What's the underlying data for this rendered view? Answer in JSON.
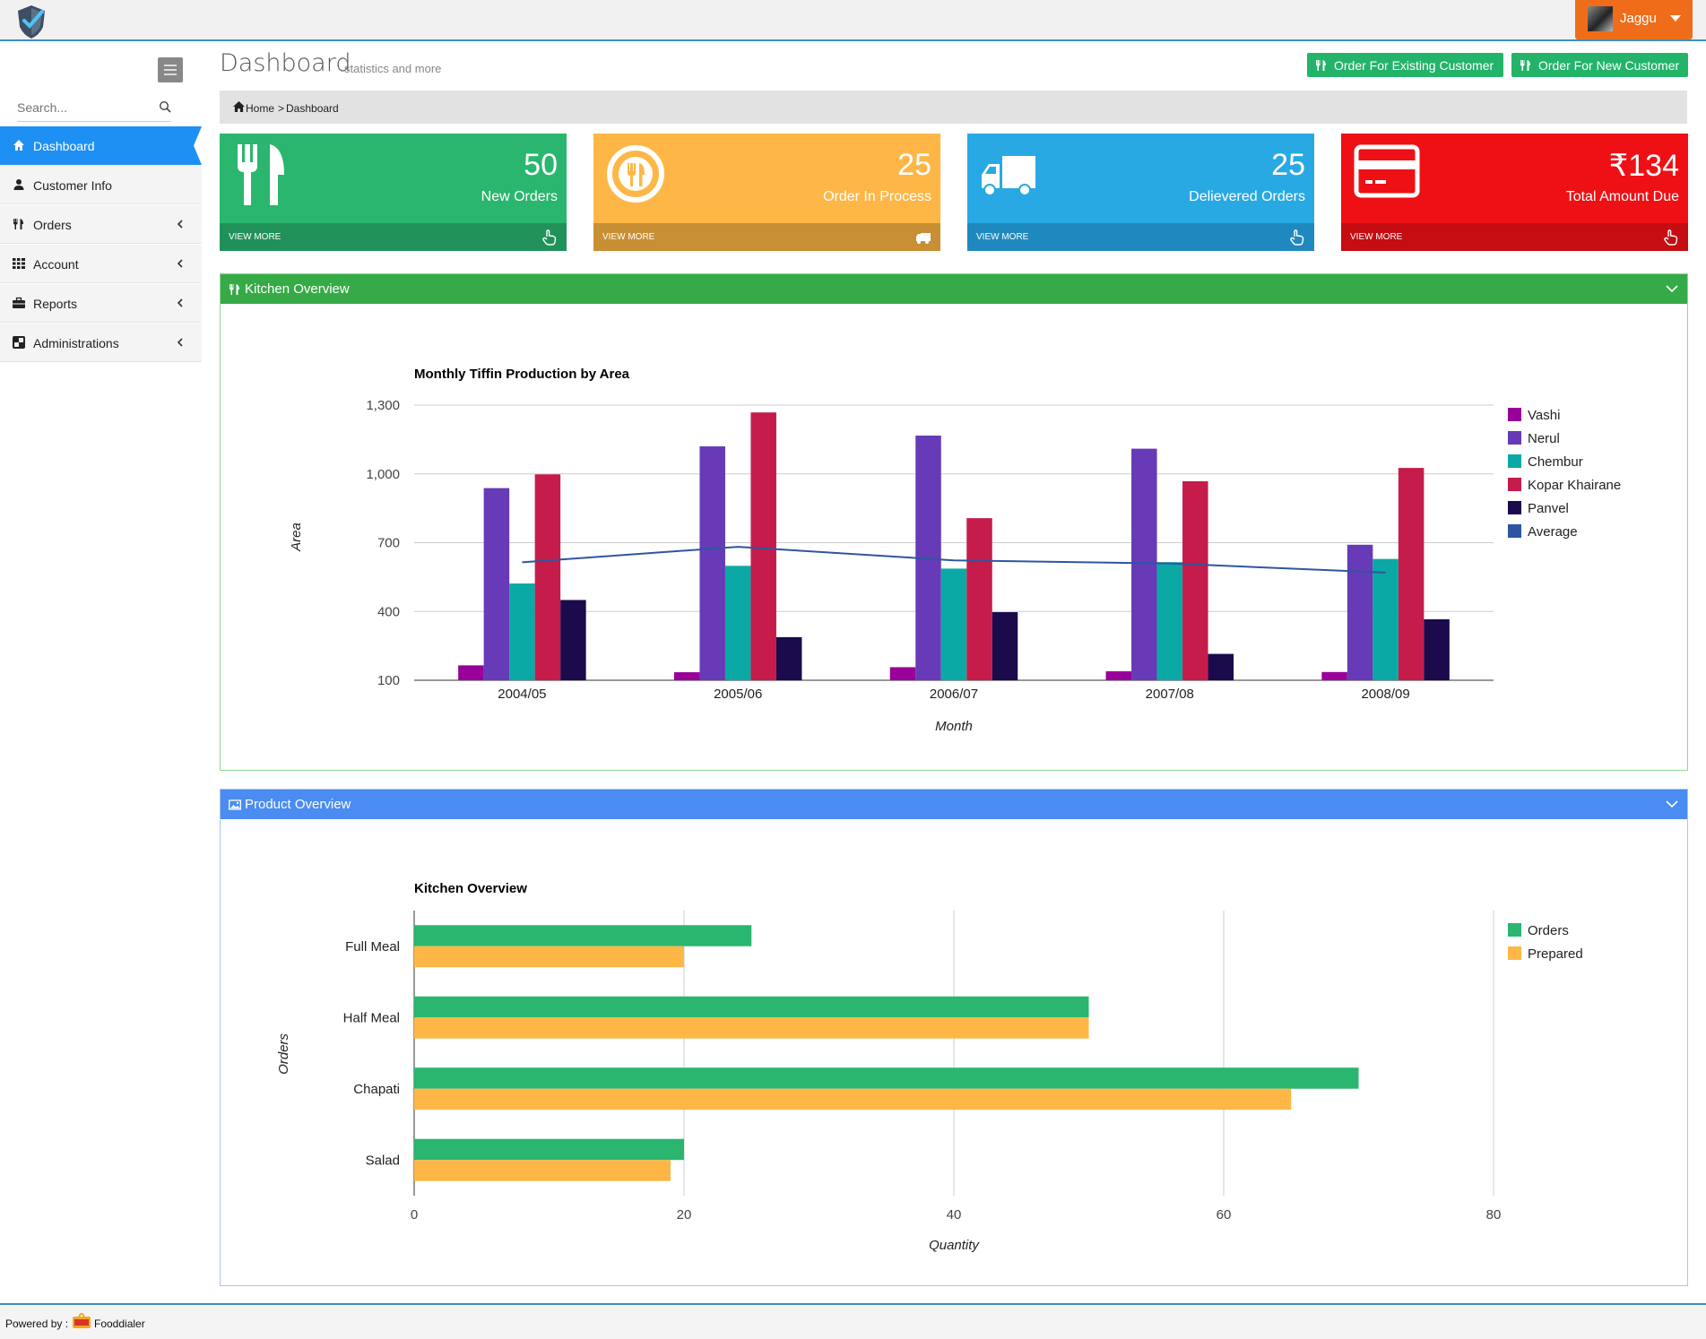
{
  "user": {
    "name": "Jaggu"
  },
  "sidebar": {
    "search_placeholder": "Search...",
    "items": [
      {
        "label": "Dashboard"
      },
      {
        "label": "Customer Info"
      },
      {
        "label": "Orders"
      },
      {
        "label": "Account"
      },
      {
        "label": "Reports"
      },
      {
        "label": "Administrations"
      }
    ]
  },
  "header": {
    "title": "Dashboard",
    "subtitle": "statistics and more",
    "btn_existing": "Order For Existing Customer",
    "btn_new": "Order For New Customer"
  },
  "breadcrumb": {
    "home": "Home",
    "current": "Dashboard"
  },
  "stats": [
    {
      "value": "50",
      "label": "New Orders",
      "more": "VIEW MORE",
      "color": "#2ab66e",
      "footer_color": "#21915a",
      "icon": "fork-knife-icon"
    },
    {
      "value": "25",
      "label": "Order In Process",
      "more": "VIEW MORE",
      "color": "#feb746",
      "footer_color": "#c98f34",
      "icon": "plate-icon"
    },
    {
      "value": "25",
      "label": "Delievered Orders",
      "more": "VIEW MORE",
      "color": "#29a9e3",
      "footer_color": "#1f89bf",
      "icon": "truck-icon"
    },
    {
      "value": "₹134",
      "label": "Total Amount Due",
      "more": "VIEW MORE",
      "color": "#ef1015",
      "footer_color": "#c50d12",
      "icon": "credit-card-icon"
    }
  ],
  "panels": {
    "kitchen": {
      "title": "Kitchen Overview",
      "color": "#36aa46"
    },
    "product": {
      "title": "Product Overview",
      "color": "#4a8cf2"
    }
  },
  "chart_data": [
    {
      "type": "bar",
      "title": "Monthly Tiffin Production by Area",
      "xlabel": "Month",
      "ylabel": "Area",
      "categories": [
        "2004/05",
        "2005/06",
        "2006/07",
        "2007/08",
        "2008/09"
      ],
      "ylim": [
        100,
        1300
      ],
      "yticks": [
        "100",
        "400",
        "700",
        "1,000",
        "1,300"
      ],
      "legend_position": "right",
      "grid": true,
      "series": [
        {
          "name": "Vashi",
          "color": "#990099",
          "values": [
            165,
            135,
            157,
            139,
            136
          ]
        },
        {
          "name": "Nerul",
          "color": "#673ab7",
          "values": [
            938,
            1120,
            1167,
            1110,
            691
          ]
        },
        {
          "name": "Chembur",
          "color": "#0aa9a6",
          "values": [
            522,
            599,
            587,
            615,
            629
          ]
        },
        {
          "name": "Kopar Khairane",
          "color": "#c51c4b",
          "values": [
            998,
            1268,
            807,
            968,
            1026
          ]
        },
        {
          "name": "Panvel",
          "color": "#1b0a4c",
          "values": [
            450,
            288,
            397,
            215,
            366
          ]
        },
        {
          "name": "Average",
          "type": "line",
          "color": "#2d56a0",
          "values": [
            614.6,
            682,
            623,
            609.4,
            569.6
          ]
        }
      ]
    },
    {
      "type": "bar",
      "orientation": "horizontal",
      "title": "Kitchen Overview",
      "xlabel": "Quantity",
      "ylabel": "Orders",
      "categories": [
        "Full Meal",
        "Half Meal",
        "Chapati",
        "Salad"
      ],
      "xlim": [
        0,
        80
      ],
      "xticks": [
        "0",
        "20",
        "40",
        "60",
        "80"
      ],
      "legend_position": "right",
      "grid": true,
      "series": [
        {
          "name": "Orders",
          "color": "#2ab66e",
          "values": [
            25,
            50,
            70,
            20
          ]
        },
        {
          "name": "Prepared",
          "color": "#feb746",
          "values": [
            20,
            50,
            65,
            19
          ]
        }
      ]
    }
  ],
  "footer": {
    "powered_by": "Powered by :",
    "brand": "Fooddialer"
  }
}
